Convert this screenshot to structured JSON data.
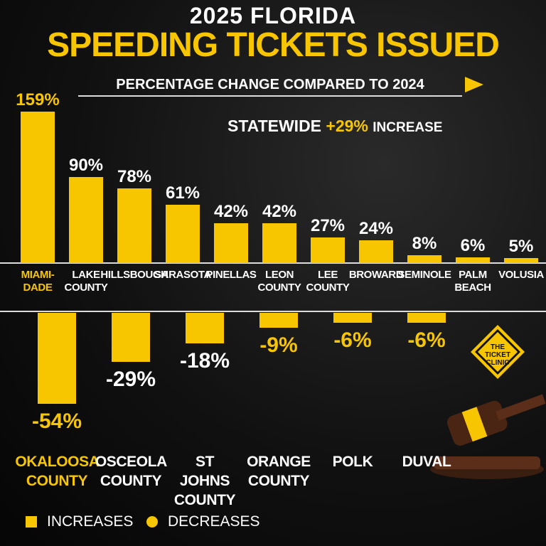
{
  "header": {
    "line1": "2025 FLORIDA",
    "line2": "SPEEDING TICKETS ISSUED",
    "subtitle": "PERCENTAGE CHANGE COMPARED TO 2024"
  },
  "statewide": {
    "label": "STATEWIDE",
    "value": "+29%",
    "suffix": "INCREASE"
  },
  "chart_data": [
    {
      "type": "bar",
      "name": "INCREASES",
      "color": "#f7c600",
      "categories": [
        "MIAMI-DADE",
        "LAKE COUNTY",
        "HILLSBOUGH",
        "SARASOTA",
        "PINELLAS",
        "LEON COUNTY",
        "LEE COUNTY",
        "BROWARD",
        "SEMINOLE",
        "PALM BEACH",
        "VOLUSIA"
      ],
      "values": [
        159,
        90,
        78,
        61,
        42,
        42,
        27,
        24,
        8,
        6,
        5
      ],
      "value_labels": [
        "159%",
        "90%",
        "78%",
        "61%",
        "42%",
        "42%",
        "27%",
        "24%",
        "8%",
        "6%",
        "5%"
      ]
    },
    {
      "type": "bar",
      "name": "DECREASES",
      "color": "#f7c600",
      "categories": [
        "OKALOOSA COUNTY",
        "OSCEOLA COUNTY",
        "ST JOHNS COUNTY",
        "ORANGE COUNTY",
        "POLK",
        "DUVAL"
      ],
      "values": [
        -54,
        -29,
        -18,
        -9,
        -6,
        -6
      ],
      "value_labels": [
        "-54%",
        "-29%",
        "-18%",
        "-9%",
        "-6%",
        "-6%"
      ]
    }
  ],
  "logo": "THE TICKET CLINIC"
}
